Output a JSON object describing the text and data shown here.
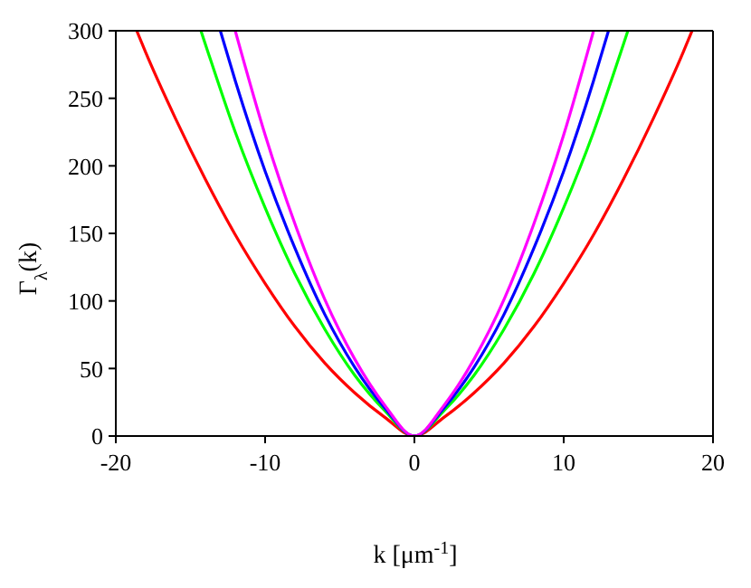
{
  "chart_data": {
    "type": "line",
    "xlabel": "k [μm$^{-1}$]",
    "ylabel": "Γ$_{λ}$(k)",
    "xlim": [
      -20,
      20
    ],
    "xticks": [
      -20,
      -10,
      0,
      10,
      20
    ],
    "ylim": [
      0,
      300
    ],
    "yticks": [
      0,
      50,
      100,
      150,
      200,
      250,
      300
    ],
    "legend": false,
    "marker": "none",
    "line_style": "solid",
    "series": [
      {
        "color": "#ff0000",
        "x": [
          -18.6,
          -18,
          -16,
          -14,
          -12,
          -10,
          -8,
          -6,
          -4,
          -2,
          0,
          2,
          4,
          6,
          8,
          10,
          12,
          14,
          16,
          18,
          18.6
        ],
        "values": [
          300,
          284,
          235,
          190,
          149,
          113,
          81,
          54,
          32,
          14,
          0,
          14,
          32,
          54,
          81,
          113,
          149,
          190,
          235,
          284,
          300
        ]
      },
      {
        "color": "#00ff00",
        "x": [
          -14.3,
          -14,
          -12,
          -10,
          -8,
          -6,
          -4,
          -2,
          0,
          2,
          4,
          6,
          8,
          10,
          12,
          14,
          14.3
        ],
        "values": [
          300,
          290,
          225,
          169,
          120,
          79,
          45,
          19,
          0,
          19,
          45,
          79,
          120,
          169,
          225,
          290,
          300
        ]
      },
      {
        "color": "#0000ff",
        "x": [
          -13,
          -12,
          -10,
          -8,
          -6,
          -4,
          -2,
          0,
          2,
          4,
          6,
          8,
          10,
          12,
          13
        ],
        "values": [
          300,
          263,
          196,
          139,
          90,
          51,
          21,
          0,
          21,
          51,
          90,
          139,
          196,
          263,
          300
        ]
      },
      {
        "color": "#ff00ff",
        "x": [
          -12,
          -10,
          -8,
          -6,
          -4,
          -2,
          0,
          2,
          4,
          6,
          8,
          10,
          12
        ],
        "values": [
          300,
          223,
          157,
          101,
          57,
          23,
          0,
          23,
          57,
          101,
          157,
          223,
          300
        ]
      }
    ]
  }
}
